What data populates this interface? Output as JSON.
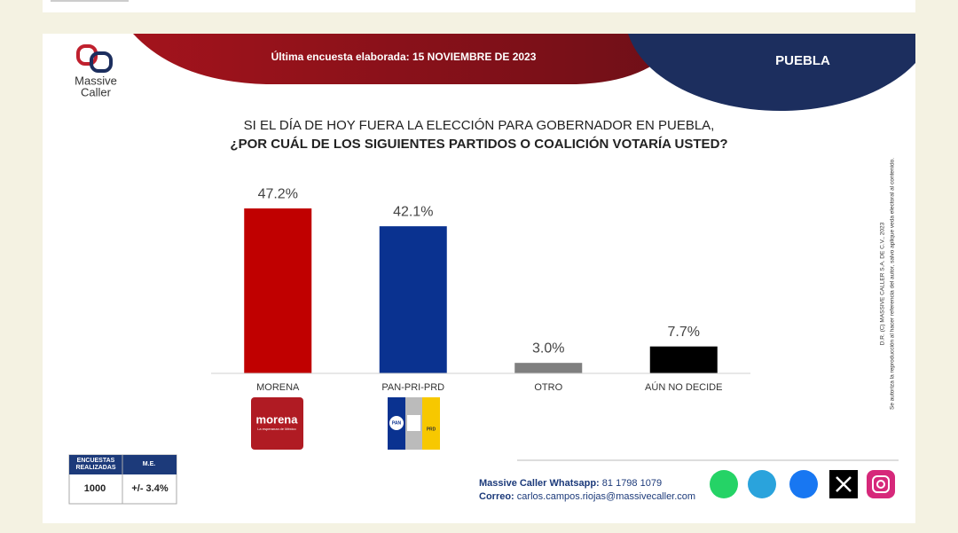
{
  "header": {
    "survey_date": "Última encuesta elaborada: 15 NOVIEMBRE  DE 2023",
    "region": "PUEBLA"
  },
  "logo": {
    "line1": "Massive",
    "line2": "Caller"
  },
  "chart_data": {
    "type": "bar",
    "title": "SI EL DÍA DE HOY FUERA LA ELECCIÓN PARA GOBERNADOR EN PUEBLA,",
    "subtitle": "¿POR CUÁL DE LOS SIGUIENTES PARTIDOS O COALICIÓN VOTARÍA USTED?",
    "categories": [
      "MORENA",
      "PAN-PRI-PRD",
      "OTRO",
      "AÚN NO DECIDE"
    ],
    "values": [
      47.2,
      42.1,
      3.0,
      7.7
    ],
    "value_labels": [
      "47.2%",
      "42.1%",
      "3.0%",
      "7.7%"
    ],
    "colors": [
      "#c00000",
      "#0a3290",
      "#7f7f7f",
      "#000000"
    ],
    "ylim": [
      0,
      50
    ]
  },
  "party_logos": [
    {
      "name": "morena",
      "tagline": "La esperanza de México"
    },
    {
      "left": "PAN",
      "right": "PRD"
    }
  ],
  "notes": [
    "D.R. (C) MASSIVE CALLER S.A. DE C.V., 2023",
    "Se autoriza la reproducción al hacer referencia del autor, salvo aplique veda electoral al contenido."
  ],
  "survey_table": {
    "headers": [
      "ENCUESTAS REALIZADAS",
      "M.E."
    ],
    "row": [
      "1000",
      "+/- 3.4%"
    ]
  },
  "contact": {
    "whatsapp_label": "Massive Caller Whatsapp:",
    "whatsapp": "81 1798 1079",
    "email_label": "Correo:",
    "email": "carlos.campos.riojas@massivecaller.com"
  }
}
